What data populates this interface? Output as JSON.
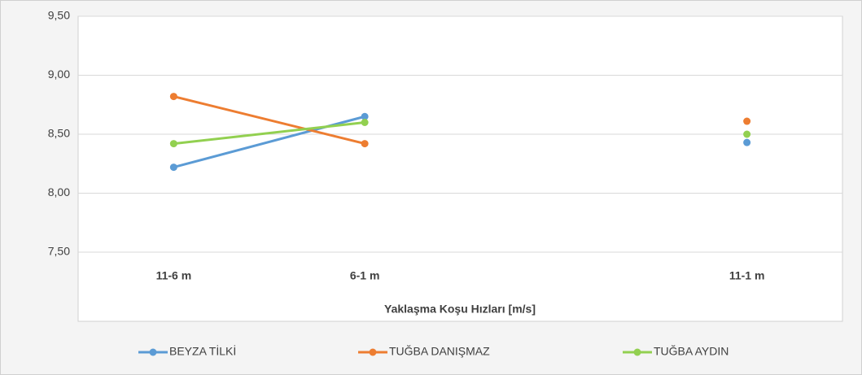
{
  "chart_data": {
    "type": "line",
    "x_label": "Yaklaşma Koşu Hızları [m/s]",
    "categories": [
      "11-6 m",
      "6-1 m",
      null,
      "11-1 m"
    ],
    "series": [
      {
        "name": "BEYZA TİLKİ",
        "color": "#5b9bd5",
        "values": [
          8.22,
          8.65,
          null,
          8.43
        ]
      },
      {
        "name": "TUĞBA DANIŞMAZ",
        "color": "#ed7d31",
        "values": [
          8.82,
          8.42,
          null,
          8.61
        ]
      },
      {
        "name": "TUĞBA AYDIN",
        "color": "#92d050",
        "values": [
          8.42,
          8.6,
          null,
          8.5
        ]
      }
    ],
    "ylim": [
      7.5,
      9.5
    ],
    "yticks": [
      {
        "value": 7.5,
        "label": "7,50"
      },
      {
        "value": 8,
        "label": "8,00"
      },
      {
        "value": 8.5,
        "label": "8,50"
      },
      {
        "value": 9,
        "label": "9,00"
      },
      {
        "value": 9.5,
        "label": "9,50"
      }
    ],
    "grid": true,
    "legend": "bottom"
  }
}
